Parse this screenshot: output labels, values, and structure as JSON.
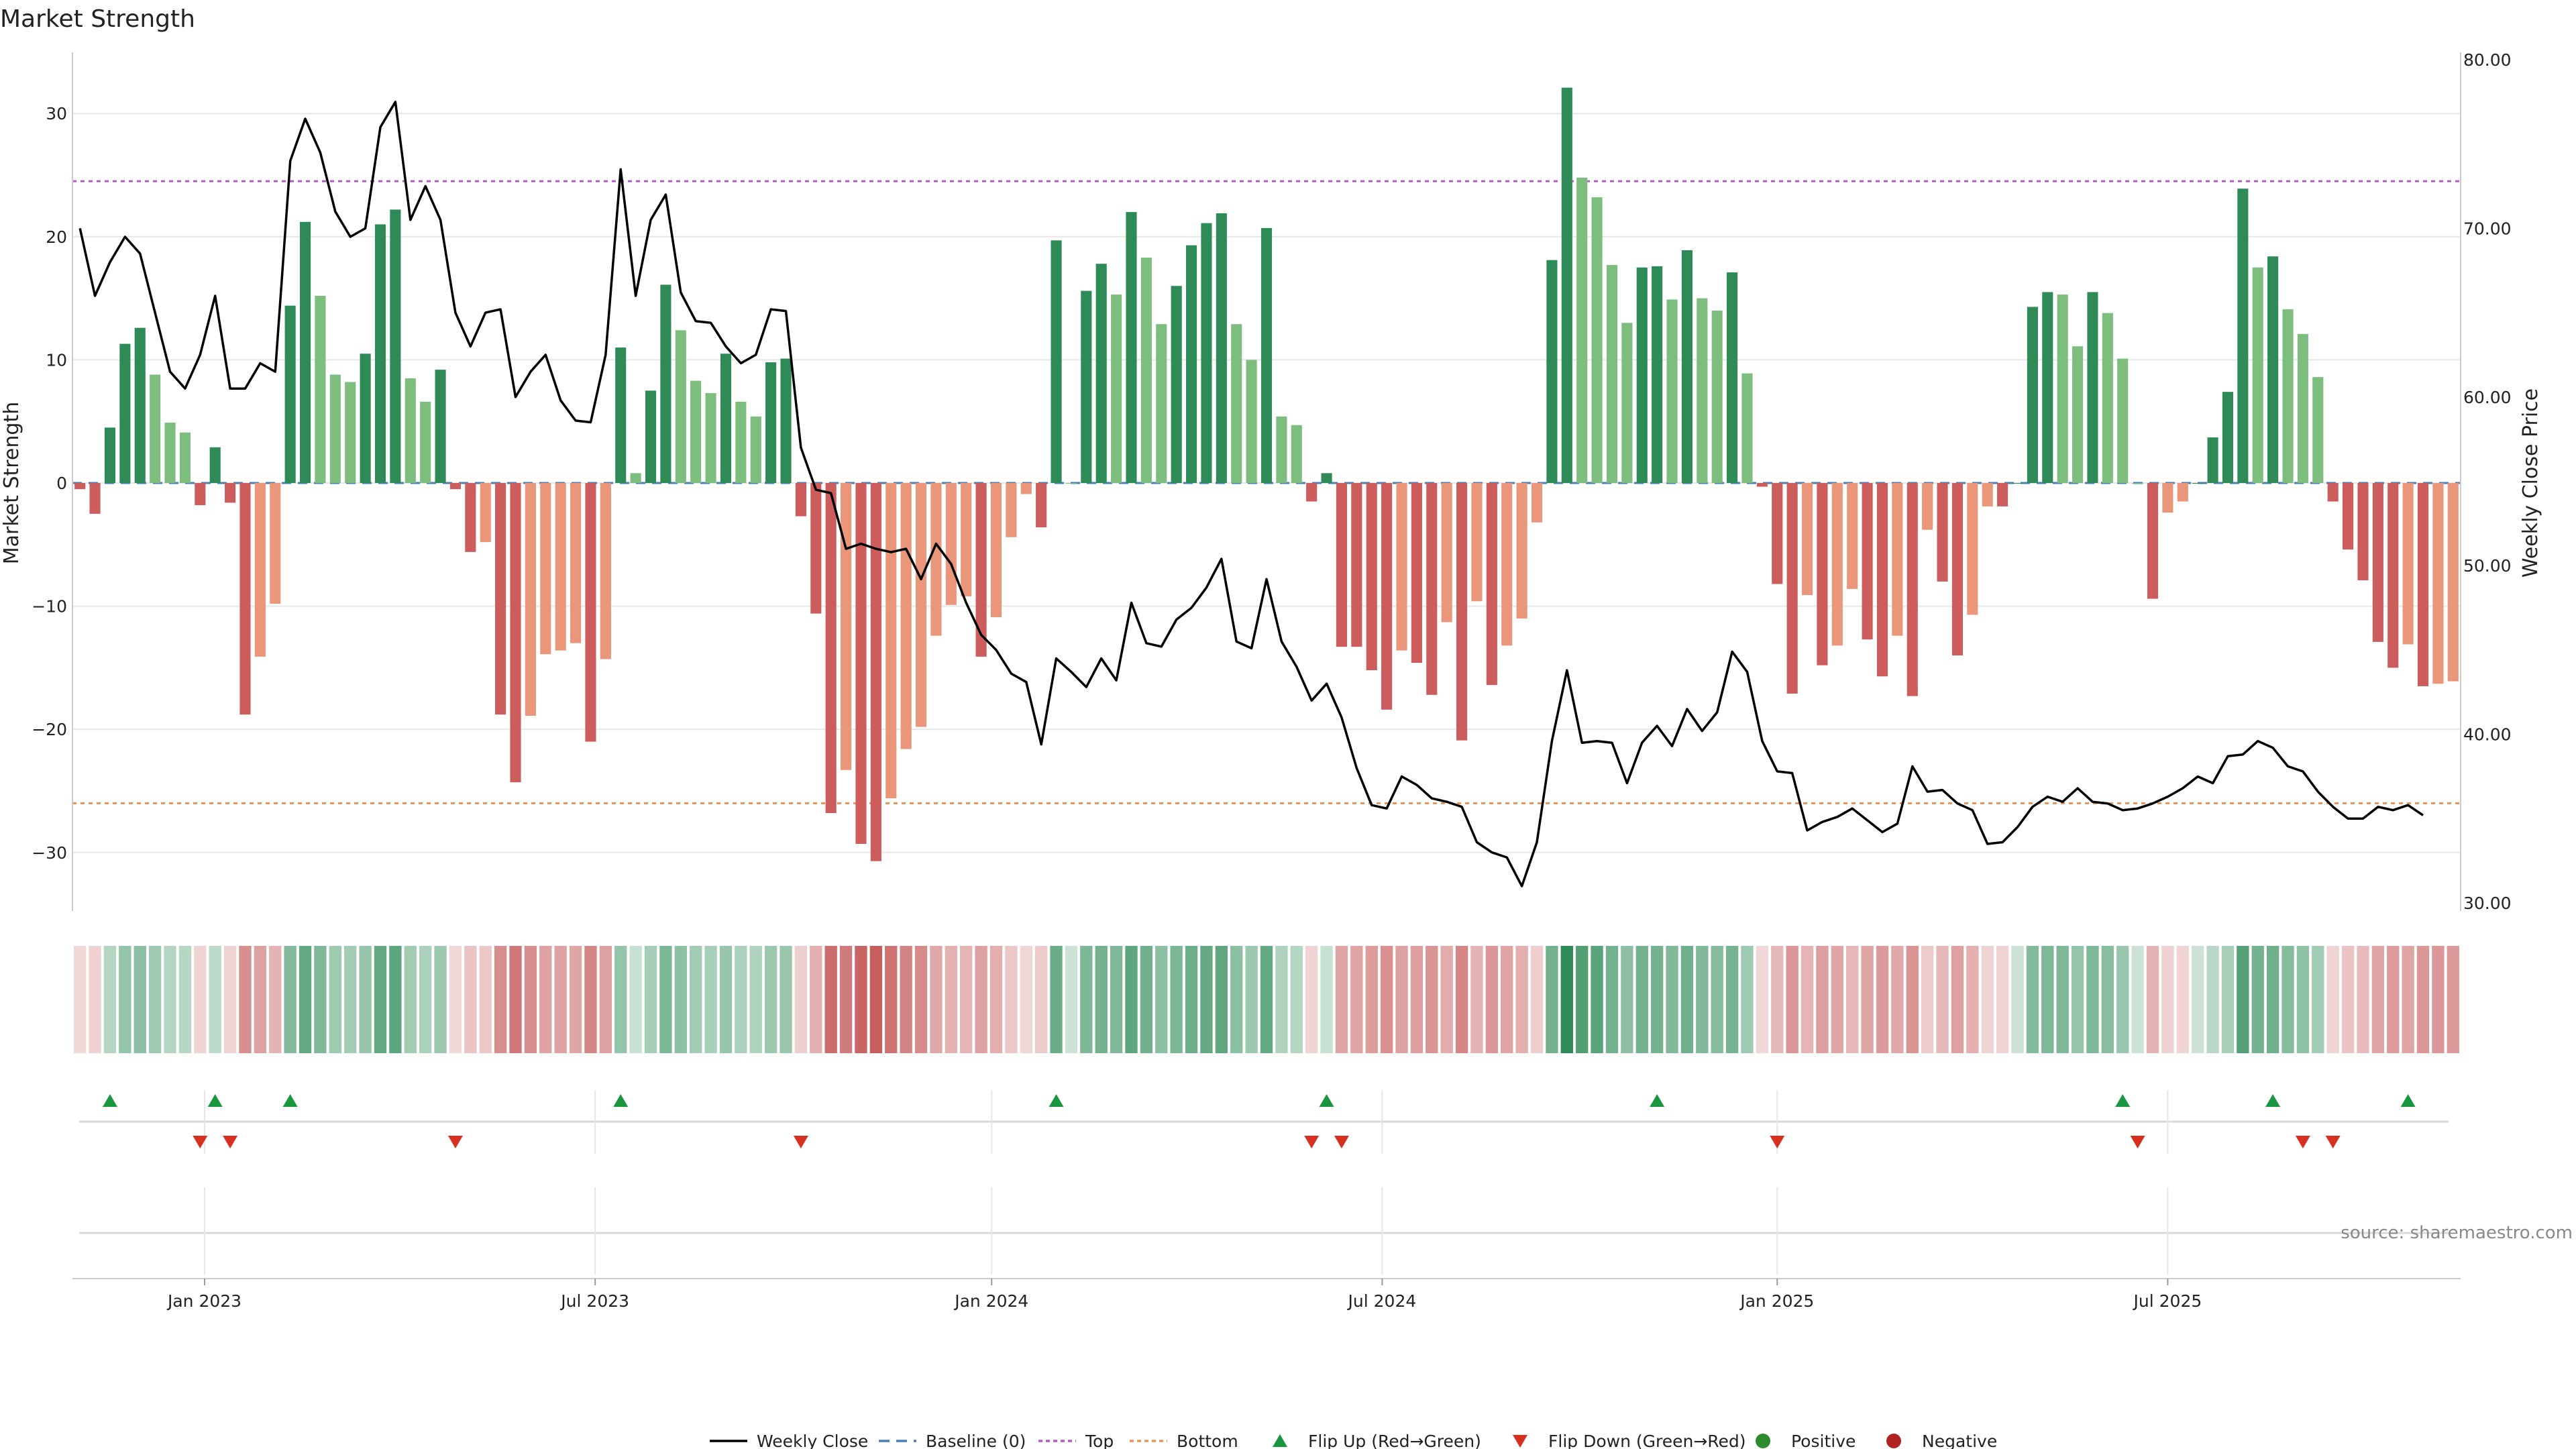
{
  "chart_data": {
    "type": "bar+line",
    "title": "Market Strength",
    "ylabel_left": "Market Strength",
    "ylabel_right": "Weekly Close Price",
    "ylim_left": [
      -35,
      35
    ],
    "ylim_right": [
      30,
      80
    ],
    "left_ticks": [
      30,
      20,
      10,
      0,
      -10,
      -20,
      -30
    ],
    "left_tick_labels": [
      "30",
      "20",
      "10",
      "0",
      "−10",
      "−20",
      "−30"
    ],
    "right_ticks": [
      80,
      70,
      60,
      50,
      40,
      30
    ],
    "right_tick_labels": [
      "80.00",
      "70.00",
      "60.00",
      "50.00",
      "40.00",
      "30.00"
    ],
    "x_ticks": [
      {
        "week": 8.3,
        "label": "Jan 2023"
      },
      {
        "week": 34.3,
        "label": "Jul 2023"
      },
      {
        "week": 60.7,
        "label": "Jan 2024"
      },
      {
        "week": 86.7,
        "label": "Jul 2024"
      },
      {
        "week": 113.0,
        "label": "Jan 2025"
      },
      {
        "week": 139.0,
        "label": "Jul 2025"
      }
    ],
    "top_level": 24.5,
    "bottom_level": -26,
    "strength": [
      -0.5,
      -2.5,
      4.5,
      11.3,
      12.6,
      8.8,
      4.9,
      4.1,
      -1.8,
      2.9,
      -1.6,
      -18.8,
      -14.1,
      -9.8,
      14.4,
      21.2,
      15.2,
      8.8,
      8.2,
      10.5,
      21,
      22.2,
      8.5,
      6.6,
      9.2,
      -0.5,
      -5.6,
      -4.8,
      -18.8,
      -24.3,
      -18.9,
      -13.9,
      -13.6,
      -13,
      -21,
      -14.3,
      11,
      0.8,
      7.5,
      16.1,
      12.4,
      8.3,
      7.3,
      10.5,
      6.6,
      5.4,
      9.8,
      10.1,
      -2.7,
      -10.6,
      -26.8,
      -23.3,
      -29.3,
      -30.7,
      -25.6,
      -21.6,
      -19.8,
      -12.4,
      -9.9,
      -9.2,
      -14.1,
      -10.9,
      -4.4,
      -0.9,
      -3.6,
      19.7,
      0,
      15.6,
      17.8,
      15.3,
      22,
      18.3,
      12.9,
      16,
      19.3,
      21.1,
      21.9,
      12.9,
      10,
      20.7,
      5.4,
      4.7,
      -1.5,
      0.8,
      -13.3,
      -13.3,
      -15.2,
      -18.4,
      -13.6,
      -14.6,
      -17.2,
      -11.3,
      -20.9,
      -9.6,
      -16.4,
      -13.2,
      -11,
      -3.2,
      18.1,
      32.1,
      24.8,
      23.2,
      17.7,
      13,
      17.5,
      17.6,
      14.9,
      18.9,
      15,
      14,
      17.1,
      8.9,
      -0.3,
      -8.2,
      -17.1,
      -9.1,
      -14.8,
      -13.2,
      -8.6,
      -12.7,
      -15.7,
      -12.4,
      -17.3,
      -3.8,
      -8,
      -14,
      -10.7,
      -1.9,
      -1.9,
      0,
      14.3,
      15.5,
      15.3,
      11.1,
      15.5,
      13.8,
      10.1,
      0,
      -9.4,
      -2.4,
      -1.5,
      0,
      3.7,
      7.4,
      23.9,
      17.5,
      18.4,
      14.1,
      12.1,
      8.6,
      -1.5,
      -5.4,
      -7.9,
      -12.9,
      -15,
      -13.1,
      -16.5,
      -16.3,
      -16.1
    ],
    "weekly_close": [
      70,
      66,
      68,
      69.5,
      68.5,
      65,
      61.5,
      60.5,
      62.5,
      66,
      60.5,
      60.5,
      62,
      61.5,
      74,
      76.5,
      74.5,
      71,
      69.5,
      70,
      76,
      77.5,
      70.5,
      72.5,
      70.5,
      65,
      63,
      65,
      65.2,
      60,
      61.5,
      62.5,
      59.8,
      58.6,
      58.5,
      62.5,
      73.5,
      66,
      70.5,
      72,
      66.2,
      64.5,
      64.4,
      63,
      62,
      62.5,
      65.2,
      65.1,
      57,
      54.5,
      54.3,
      51,
      51.3,
      51,
      50.8,
      51,
      49.2,
      51.3,
      50.1,
      47.8,
      45.9,
      45,
      43.6,
      43.1,
      39.4,
      44.5,
      43.7,
      42.8,
      44.5,
      43.2,
      47.8,
      45.4,
      45.2,
      46.8,
      47.5,
      48.7,
      50.4,
      45.5,
      45.1,
      49.2,
      45.5,
      44,
      42,
      43,
      41,
      38,
      35.8,
      35.6,
      37.5,
      37,
      36.2,
      36,
      35.7,
      33.6,
      33,
      32.7,
      31,
      33.6,
      39.6,
      43.8,
      39.5,
      39.6,
      39.5,
      37.1,
      39.5,
      40.5,
      39.3,
      41.5,
      40.2,
      41.3,
      44.9,
      43.7,
      39.6,
      37.8,
      37.7,
      34.3,
      34.8,
      35.1,
      35.6,
      34.9,
      34.2,
      34.7,
      38.1,
      36.6,
      36.7,
      35.9,
      35.5,
      33.5,
      33.6,
      34.5,
      35.7,
      36.3,
      36,
      36.8,
      36,
      35.9,
      35.5,
      35.6,
      35.9,
      36.3,
      36.8,
      37.5,
      37.1,
      38.7,
      38.8,
      39.6,
      39.2,
      38.1,
      37.8,
      36.6,
      35.7,
      35,
      35,
      35.7,
      35.5,
      35.8,
      35.2
    ],
    "flip_up_weeks": [
      2,
      9,
      14,
      36,
      65,
      83,
      105,
      136,
      146,
      155
    ],
    "flip_down_weeks": [
      8,
      10,
      25,
      48,
      82,
      84,
      113,
      137,
      148,
      150
    ],
    "series": [
      {
        "name": "Weekly Close",
        "color": "#000000",
        "style": "solid-line"
      },
      {
        "name": "Baseline (0)",
        "color": "#4a7fb5",
        "style": "dashed-line"
      },
      {
        "name": "Top",
        "color": "#b05cc4",
        "style": "dotted-line"
      },
      {
        "name": "Bottom",
        "color": "#e0965a",
        "style": "dotted-line"
      },
      {
        "name": "Flip Up (Red→Green)",
        "color": "#1a9641",
        "style": "triangle-up"
      },
      {
        "name": "Flip Down (Green→Red)",
        "color": "#d7301f",
        "style": "triangle-down"
      },
      {
        "name": "Positive",
        "color": "#2e8b2e",
        "style": "circle"
      },
      {
        "name": "Negative",
        "color": "#b22222",
        "style": "circle"
      }
    ]
  },
  "source_text": "source: sharemaestro.com",
  "colors": {
    "pos_strong": "#2e8b57",
    "pos_light": "#7dbe7f",
    "neg_strong": "#cd5c5c",
    "neg_light": "#e9967a",
    "grid": "#e6e6e6"
  }
}
